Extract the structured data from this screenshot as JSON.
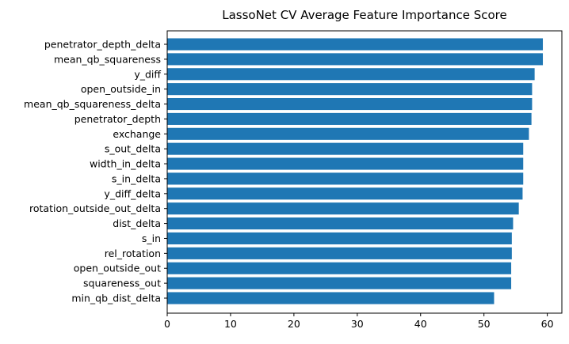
{
  "chart_data": {
    "type": "bar",
    "orientation": "horizontal",
    "title": "LassoNet CV Average Feature Importance Score",
    "xlabel": "",
    "ylabel": "",
    "xlim": [
      0,
      62.3
    ],
    "xticks": [
      0,
      10,
      20,
      30,
      40,
      50,
      60
    ],
    "grid": false,
    "bar_color": "#1f77b4",
    "categories": [
      "penetrator_depth_delta",
      "mean_qb_squareness",
      "y_diff",
      "open_outside_in",
      "mean_qb_squareness_delta",
      "penetrator_depth",
      "exchange",
      "s_out_delta",
      "width_in_delta",
      "s_in_delta",
      "y_diff_delta",
      "rotation_outside_out_delta",
      "dist_delta",
      "s_in",
      "rel_rotation",
      "open_outside_out",
      "squareness_out",
      "min_qb_dist_delta"
    ],
    "values": [
      59.3,
      59.3,
      58.0,
      57.6,
      57.6,
      57.5,
      57.1,
      56.2,
      56.2,
      56.2,
      56.1,
      55.5,
      54.6,
      54.4,
      54.4,
      54.3,
      54.3,
      51.6
    ]
  }
}
